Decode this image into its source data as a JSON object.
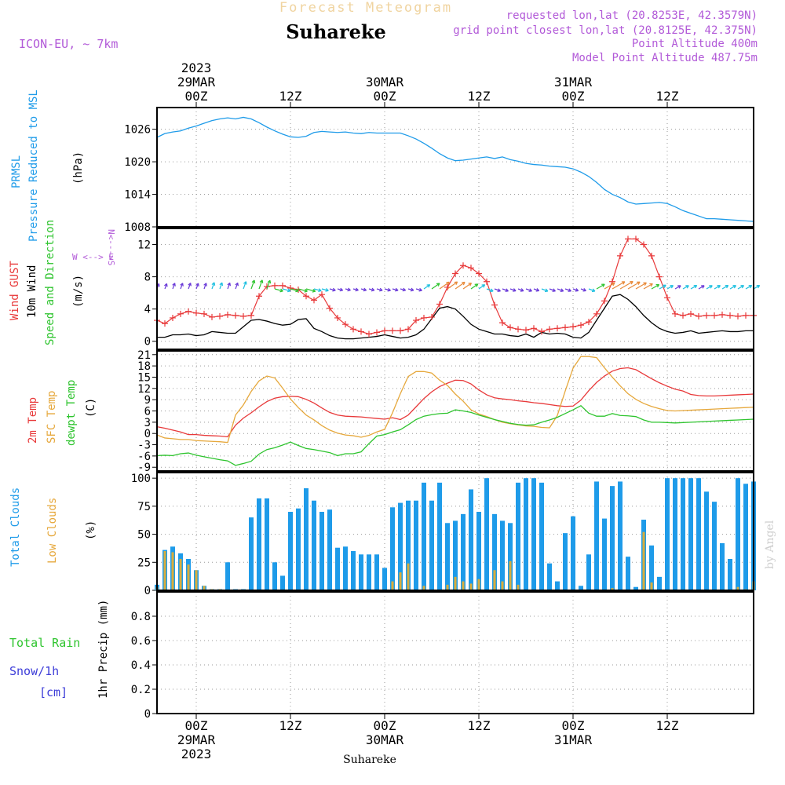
{
  "header": {
    "title_top": "Forecast Meteogram",
    "location": "Suhareke",
    "model": "ICON-EU, ~ 7km",
    "requested": "requested lon,lat (20.8253E, 42.3579N)",
    "grid_point": "grid point closest lon,lat (20.8125E, 42.375N)",
    "point_alt": "Point Altitude 400m",
    "model_alt": "Model Point Altitude 487.75m",
    "footer_location": "Suhareke",
    "watermark": "by Angel"
  },
  "colors": {
    "blue": "#1e9be9",
    "red": "#e8393a",
    "orange": "#e6a83c",
    "green": "#2ec42e",
    "purple": "#b25ad8",
    "black": "#000000",
    "grid": "#9a9a9a",
    "bar_total": "#1e9be9",
    "bar_low": "#d8ad3c"
  },
  "time_axis": {
    "top_labels": [
      {
        "t": 0,
        "lines": [
          "2023",
          "29MAR",
          "00Z"
        ]
      },
      {
        "t": 12,
        "lines": [
          "",
          "",
          "12Z"
        ]
      },
      {
        "t": 24,
        "lines": [
          "",
          "30MAR",
          "00Z"
        ]
      },
      {
        "t": 36,
        "lines": [
          "",
          "",
          "12Z"
        ]
      },
      {
        "t": 48,
        "lines": [
          "",
          "31MAR",
          "00Z"
        ]
      },
      {
        "t": 60,
        "lines": [
          "",
          "",
          "12Z"
        ]
      }
    ],
    "bottom_labels": [
      {
        "t": 0,
        "lines": [
          "00Z",
          "29MAR",
          "2023"
        ]
      },
      {
        "t": 12,
        "lines": [
          "12Z",
          "",
          ""
        ]
      },
      {
        "t": 24,
        "lines": [
          "00Z",
          "30MAR",
          ""
        ]
      },
      {
        "t": 36,
        "lines": [
          "12Z",
          "",
          ""
        ]
      },
      {
        "t": 48,
        "lines": [
          "00Z",
          "31MAR",
          ""
        ]
      },
      {
        "t": 60,
        "lines": [
          "12Z",
          "",
          ""
        ]
      }
    ],
    "grid_hours": [
      0,
      12,
      24,
      36,
      48,
      60
    ],
    "xlim": [
      -5,
      71
    ]
  },
  "panels": {
    "pressure": {
      "label_lines": [
        "PRMSL",
        "Pressure Reduced to MSL"
      ],
      "unit": "(hPa)",
      "ticks": [
        "1008",
        "1014",
        "1020",
        "1026"
      ]
    },
    "wind": {
      "label_gust": "Wind GUST",
      "label_wind": "10m Wind",
      "label_dir": "Speed and Direction",
      "unit": "(m/s)",
      "compass_ns": "N<--->S",
      "compass_we": "W <--> E",
      "ticks": [
        "0",
        "4",
        "8",
        "12"
      ]
    },
    "temp": {
      "label_2m": "2m Temp",
      "label_sfc": "SFC Temp",
      "label_dew": "dewpt Temp",
      "unit": "(C)",
      "ticks": [
        "-9",
        "-6",
        "-3",
        "0",
        "3",
        "6",
        "9",
        "12",
        "15",
        "18",
        "21"
      ]
    },
    "clouds": {
      "label_total": "Total Clouds",
      "label_low": "Low Clouds",
      "unit": "(%)",
      "ticks": [
        "0",
        "25",
        "50",
        "75",
        "100"
      ]
    },
    "precip": {
      "label_rain": "Total   Rain",
      "label_snow": "Snow/1h",
      "label_cm": "[cm]",
      "unit": "1hr Precip (mm)",
      "ticks": [
        "0",
        "0.2",
        "0.4",
        "0.6",
        "0.8"
      ]
    }
  },
  "chart_data": [
    {
      "type": "line",
      "id": "pressure",
      "ylabel": "PRMSL Pressure Reduced to MSL (hPa)",
      "ylim": [
        1008,
        1030
      ],
      "grid": true,
      "x": [
        -5,
        -4,
        -3,
        -2,
        -1,
        0,
        1,
        2,
        3,
        4,
        5,
        6,
        7,
        8,
        9,
        10,
        11,
        12,
        13,
        14,
        15,
        16,
        17,
        18,
        19,
        20,
        21,
        22,
        23,
        24,
        25,
        26,
        27,
        28,
        29,
        30,
        31,
        32,
        33,
        34,
        35,
        36,
        37,
        38,
        39,
        40,
        41,
        42,
        43,
        44,
        45,
        46,
        47,
        48,
        49,
        50,
        51,
        52,
        53,
        54,
        55,
        56,
        57,
        58,
        59,
        60,
        61,
        62,
        63,
        64,
        65,
        66,
        67,
        68,
        69,
        70,
        71
      ],
      "values": [
        1024.5,
        1025.2,
        1025.5,
        1025.7,
        1026.2,
        1026.6,
        1027.1,
        1027.6,
        1027.9,
        1028.1,
        1027.9,
        1028.2,
        1027.9,
        1027.2,
        1026.4,
        1025.7,
        1025.1,
        1024.6,
        1024.5,
        1024.7,
        1025.4,
        1025.6,
        1025.5,
        1025.4,
        1025.5,
        1025.3,
        1025.2,
        1025.4,
        1025.3,
        1025.3,
        1025.3,
        1025.3,
        1024.8,
        1024.2,
        1023.4,
        1022.5,
        1021.5,
        1020.7,
        1020.2,
        1020.3,
        1020.5,
        1020.7,
        1020.9,
        1020.6,
        1020.9,
        1020.4,
        1020.1,
        1019.7,
        1019.5,
        1019.4,
        1019.2,
        1019.1,
        1019.0,
        1018.7,
        1018.1,
        1017.3,
        1016.2,
        1014.9,
        1014.0,
        1013.4,
        1012.6,
        1012.2,
        1012.3,
        1012.4,
        1012.5,
        1012.3,
        1011.7,
        1011.0,
        1010.5,
        1010.0,
        1009.5,
        1009.5,
        1009.4,
        1009.3,
        1009.2,
        1009.1,
        1009.0
      ]
    },
    {
      "type": "line",
      "id": "wind",
      "ylabel": "Wind GUST / 10m Wind Speed and Direction (m/s)",
      "ylim": [
        -1,
        14
      ],
      "grid": true,
      "x": [
        -5,
        -4,
        -3,
        -2,
        -1,
        0,
        1,
        2,
        3,
        4,
        5,
        6,
        7,
        8,
        9,
        10,
        11,
        12,
        13,
        14,
        15,
        16,
        17,
        18,
        19,
        20,
        21,
        22,
        23,
        24,
        25,
        26,
        27,
        28,
        29,
        30,
        31,
        32,
        33,
        34,
        35,
        36,
        37,
        38,
        39,
        40,
        41,
        42,
        43,
        44,
        45,
        46,
        47,
        48,
        49,
        50,
        51,
        52,
        53,
        54,
        55,
        56,
        57,
        58,
        59,
        60,
        61,
        62,
        63,
        64,
        65,
        66,
        67,
        68,
        69,
        70,
        71
      ],
      "series": [
        {
          "name": "Wind GUST",
          "color": "red",
          "values": [
            2.6,
            2.2,
            2.9,
            3.4,
            3.7,
            3.5,
            3.4,
            3.0,
            3.1,
            3.3,
            3.2,
            3.1,
            3.2,
            5.6,
            6.8,
            6.9,
            6.9,
            6.6,
            6.4,
            5.6,
            5.1,
            5.8,
            4.1,
            2.9,
            2.1,
            1.5,
            1.2,
            0.9,
            1.1,
            1.3,
            1.3,
            1.3,
            1.5,
            2.6,
            2.9,
            3.0,
            4.6,
            6.7,
            8.4,
            9.4,
            9.1,
            8.4,
            7.4,
            4.5,
            2.3,
            1.7,
            1.5,
            1.4,
            1.6,
            1.2,
            1.5,
            1.6,
            1.7,
            1.8,
            2.0,
            2.4,
            3.4,
            5.0,
            7.4,
            10.6,
            12.7,
            12.7,
            12.0,
            10.6,
            8.0,
            5.4,
            3.4,
            3.2,
            3.4,
            3.1,
            3.2,
            3.2,
            3.3,
            3.2,
            3.1,
            3.2,
            3.2
          ]
        },
        {
          "name": "10m Wind",
          "color": "black",
          "values": [
            0.5,
            0.5,
            0.8,
            0.8,
            0.9,
            0.7,
            0.8,
            1.2,
            1.1,
            1.0,
            1.0,
            1.8,
            2.6,
            2.7,
            2.5,
            2.2,
            2.0,
            2.1,
            2.7,
            2.8,
            1.6,
            1.2,
            0.7,
            0.4,
            0.3,
            0.3,
            0.4,
            0.5,
            0.6,
            0.8,
            0.6,
            0.4,
            0.5,
            0.8,
            1.5,
            2.8,
            4.1,
            4.3,
            4.0,
            3.1,
            2.1,
            1.5,
            1.2,
            0.9,
            0.9,
            0.7,
            0.6,
            0.9,
            0.5,
            1.1,
            0.9,
            1.0,
            0.9,
            0.5,
            0.4,
            1.1,
            2.6,
            4.1,
            5.6,
            5.8,
            5.2,
            4.3,
            3.2,
            2.3,
            1.6,
            1.2,
            1.0,
            1.1,
            1.3,
            1.0,
            1.1,
            1.2,
            1.3,
            1.2,
            1.2,
            1.3,
            1.3
          ]
        }
      ]
    },
    {
      "type": "line",
      "id": "temp",
      "ylabel": "2m Temp / SFC Temp / dewpt Temp (C)",
      "ylim": [
        -10,
        22
      ],
      "grid": true,
      "x": [
        -5,
        -4,
        -3,
        -2,
        -1,
        0,
        1,
        2,
        3,
        4,
        5,
        6,
        7,
        8,
        9,
        10,
        11,
        12,
        13,
        14,
        15,
        16,
        17,
        18,
        19,
        20,
        21,
        22,
        23,
        24,
        25,
        26,
        27,
        28,
        29,
        30,
        31,
        32,
        33,
        34,
        35,
        36,
        37,
        38,
        39,
        40,
        41,
        42,
        43,
        44,
        45,
        46,
        47,
        48,
        49,
        50,
        51,
        52,
        53,
        54,
        55,
        56,
        57,
        58,
        59,
        60,
        61,
        62,
        63,
        64,
        65,
        66,
        67,
        68,
        69,
        70,
        71
      ],
      "series": [
        {
          "name": "2m Temp",
          "color": "red",
          "values": [
            1.8,
            1.4,
            0.9,
            0.4,
            -0.3,
            -0.3,
            -0.5,
            -0.6,
            -0.7,
            -0.9,
            2.2,
            4.1,
            5.5,
            7.1,
            8.5,
            9.4,
            9.8,
            9.9,
            9.8,
            9.1,
            8.1,
            6.8,
            5.6,
            4.9,
            4.6,
            4.5,
            4.4,
            4.2,
            4.0,
            3.8,
            4.2,
            3.7,
            4.9,
            7.1,
            9.3,
            11.1,
            12.5,
            13.4,
            14.2,
            14.1,
            13.2,
            11.6,
            10.3,
            9.5,
            9.2,
            9.0,
            8.7,
            8.5,
            8.2,
            8.0,
            7.7,
            7.4,
            7.2,
            7.3,
            8.9,
            11.4,
            13.6,
            15.3,
            16.6,
            17.3,
            17.5,
            17.0,
            15.8,
            14.6,
            13.5,
            12.6,
            11.8,
            11.3,
            10.4,
            10.1,
            10.0,
            10.0,
            10.1,
            10.2,
            10.3,
            10.4,
            10.5
          ]
        },
        {
          "name": "SFC Temp",
          "color": "orange",
          "values": [
            -0.4,
            -1.2,
            -1.4,
            -1.6,
            -1.6,
            -1.9,
            -2.0,
            -2.1,
            -2.2,
            -2.4,
            4.9,
            7.6,
            11.2,
            14.0,
            15.3,
            14.8,
            12.1,
            9.2,
            6.9,
            4.9,
            3.6,
            2.1,
            0.9,
            0.1,
            -0.4,
            -0.6,
            -1.0,
            -0.5,
            0.4,
            1.1,
            5.5,
            10.6,
            15.2,
            16.5,
            16.5,
            16.1,
            14.2,
            12.8,
            10.5,
            8.6,
            6.3,
            5.2,
            4.5,
            3.7,
            3.0,
            2.6,
            2.3,
            2.0,
            1.9,
            1.6,
            1.5,
            4.8,
            11.3,
            17.4,
            20.5,
            20.5,
            20.2,
            17.5,
            15.0,
            12.7,
            10.6,
            9.1,
            8.0,
            7.2,
            6.6,
            6.1,
            6.0,
            6.1,
            6.2,
            6.3,
            6.4,
            6.5,
            6.6,
            6.7,
            6.8,
            6.9,
            7.0
          ]
        },
        {
          "name": "dewpt Temp",
          "color": "green",
          "values": [
            -5.9,
            -5.8,
            -5.9,
            -5.4,
            -5.2,
            -5.8,
            -6.2,
            -6.6,
            -7.0,
            -7.3,
            -8.5,
            -8.0,
            -7.4,
            -5.5,
            -4.3,
            -3.8,
            -3.1,
            -2.3,
            -3.2,
            -4.0,
            -4.3,
            -4.7,
            -5.1,
            -5.9,
            -5.4,
            -5.4,
            -4.9,
            -2.7,
            -0.7,
            -0.3,
            0.4,
            1.0,
            2.3,
            3.7,
            4.6,
            5.0,
            5.3,
            5.4,
            6.3,
            6.0,
            5.6,
            4.9,
            4.3,
            3.7,
            3.2,
            2.7,
            2.4,
            2.2,
            2.3,
            3.0,
            3.6,
            4.3,
            5.3,
            6.3,
            7.4,
            5.4,
            4.6,
            4.6,
            5.3,
            4.8,
            4.7,
            4.5,
            3.6,
            3.0,
            3.0,
            2.9,
            2.8,
            2.9,
            3.0,
            3.1,
            3.2,
            3.3,
            3.4,
            3.5,
            3.6,
            3.7,
            3.8
          ]
        }
      ]
    },
    {
      "type": "bar",
      "id": "clouds",
      "ylabel": "Total Clouds / Low Clouds (%)",
      "ylim": [
        0,
        105
      ],
      "grid": true,
      "x": [
        -5,
        -4,
        -3,
        -2,
        -1,
        0,
        1,
        2,
        3,
        4,
        5,
        6,
        7,
        8,
        9,
        10,
        11,
        12,
        13,
        14,
        15,
        16,
        17,
        18,
        19,
        20,
        21,
        22,
        23,
        24,
        25,
        26,
        27,
        28,
        29,
        30,
        31,
        32,
        33,
        34,
        35,
        36,
        37,
        38,
        39,
        40,
        41,
        42,
        43,
        44,
        45,
        46,
        47,
        48,
        49,
        50,
        51,
        52,
        53,
        54,
        55,
        56,
        57,
        58,
        59,
        60,
        61,
        62,
        63,
        64,
        65,
        66,
        67,
        68,
        69,
        70,
        71
      ],
      "series": [
        {
          "name": "Total Clouds",
          "color": "blue",
          "values": [
            5,
            36,
            39,
            33,
            28,
            18,
            4,
            1,
            1,
            25,
            1,
            1,
            65,
            82,
            82,
            25,
            13,
            70,
            73,
            91,
            80,
            70,
            72,
            38,
            39,
            35,
            32,
            32,
            32,
            20,
            74,
            78,
            80,
            80,
            96,
            80,
            96,
            60,
            62,
            68,
            90,
            70,
            100,
            68,
            62,
            60,
            96,
            100,
            100,
            96,
            24,
            8,
            51,
            66,
            4,
            32,
            97,
            64,
            93,
            97,
            30,
            3,
            63,
            40,
            12,
            100,
            100,
            100,
            100,
            100,
            88,
            79,
            42,
            28,
            100,
            95,
            97
          ],
          "missing": []
        },
        {
          "name": "Low Clouds",
          "color": "orange",
          "values": [
            3,
            35,
            34,
            28,
            23,
            18,
            4,
            1,
            1,
            0,
            0,
            0,
            0,
            0,
            0,
            0,
            0,
            0,
            0,
            0,
            0,
            0,
            0,
            0,
            0,
            0,
            0,
            0,
            0,
            0,
            8,
            16,
            24,
            0,
            4,
            0,
            0,
            5,
            12,
            8,
            6,
            10,
            0,
            18,
            8,
            26,
            5,
            0,
            0,
            0,
            0,
            0,
            0,
            0,
            0,
            0,
            0,
            0,
            2,
            0,
            0,
            0,
            52,
            7,
            0,
            0,
            0,
            0,
            0,
            0,
            0,
            0,
            0,
            0,
            3,
            1,
            8
          ]
        }
      ]
    },
    {
      "type": "bar",
      "id": "precip",
      "ylabel": "1hr Precip (mm)",
      "ylim": [
        0,
        1.0
      ],
      "grid": true,
      "series": [
        {
          "name": "Total Rain",
          "values": []
        },
        {
          "name": "Snow/1h [cm]",
          "values": []
        }
      ]
    }
  ]
}
